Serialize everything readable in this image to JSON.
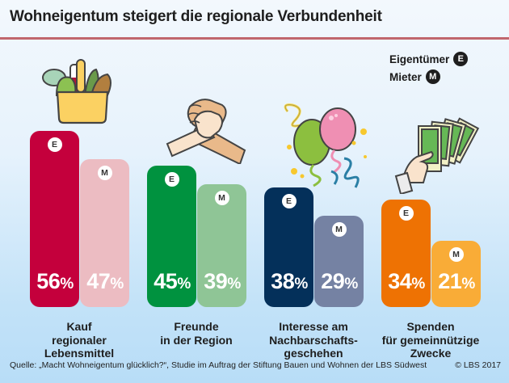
{
  "title": "Wohneigentum steigert die regionale Verbundenheit",
  "legend": {
    "owner_label": "Eigentümer",
    "owner_badge": "E",
    "renter_label": "Mieter",
    "renter_badge": "M"
  },
  "chart_data": {
    "type": "bar",
    "title": "Wohneigentum steigert die regionale Verbundenheit",
    "xlabel": "",
    "ylabel": "",
    "ylim": [
      0,
      60
    ],
    "grid": false,
    "legend": "top-right",
    "unit": "%",
    "categories": [
      "Kauf\nregionaler\nLebensmittel",
      "Freunde\nin der Region",
      "Interesse am\nNachbarschafts-\ngeschehen",
      "Spenden\nfür gemeinnützige\nZwecke"
    ],
    "series": [
      {
        "name": "Eigentümer",
        "badge": "E",
        "values": [
          56,
          45,
          38,
          34
        ]
      },
      {
        "name": "Mieter",
        "badge": "M",
        "values": [
          47,
          39,
          29,
          21
        ]
      }
    ],
    "colors": [
      {
        "owner": "#c4003c",
        "renter": "#ecbcc2"
      },
      {
        "owner": "#00923f",
        "renter": "#8fc596"
      },
      {
        "owner": "#04305a",
        "renter": "#7582a3"
      },
      {
        "owner": "#ee7203",
        "renter": "#f9ac37"
      }
    ],
    "icons": [
      "shopping-basket-icon",
      "handshake-icon",
      "balloons-icon",
      "money-hand-icon"
    ]
  },
  "footer": {
    "source": "Quelle:  „Macht Wohneigentum glücklich?“, Studie im Auftrag der Stiftung Bauen und Wohnen der LBS Südwest",
    "copyright": "© LBS 2017"
  }
}
